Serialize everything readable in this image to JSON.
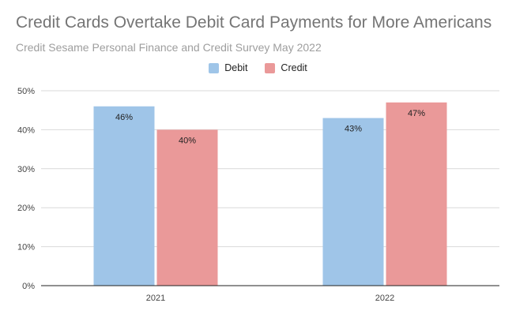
{
  "title": "Credit Cards Overtake Debit Card Payments for More Americans",
  "subtitle": "Credit Sesame Personal Finance and Credit Survey May 2022",
  "colors": {
    "debit": "#9fc5e8",
    "credit": "#ea9999",
    "grid": "#d9d9d9",
    "axis": "#222222"
  },
  "chart_data": {
    "type": "bar",
    "title": "Credit Cards Overtake Debit Card Payments for More Americans",
    "subtitle": "Credit Sesame Personal Finance and Credit Survey May 2022",
    "categories": [
      "2021",
      "2022"
    ],
    "series": [
      {
        "name": "Debit",
        "values": [
          46,
          43
        ],
        "labels": [
          "46%",
          "43%"
        ]
      },
      {
        "name": "Credit",
        "values": [
          40,
          47
        ],
        "labels": [
          "40%",
          "47%"
        ]
      }
    ],
    "ylim": [
      0,
      50
    ],
    "yticks": [
      0,
      10,
      20,
      30,
      40,
      50
    ],
    "ytick_labels": [
      "0%",
      "10%",
      "20%",
      "30%",
      "40%",
      "50%"
    ],
    "xlabel": "",
    "ylabel": "",
    "grid": true,
    "legend_position": "top-center"
  }
}
